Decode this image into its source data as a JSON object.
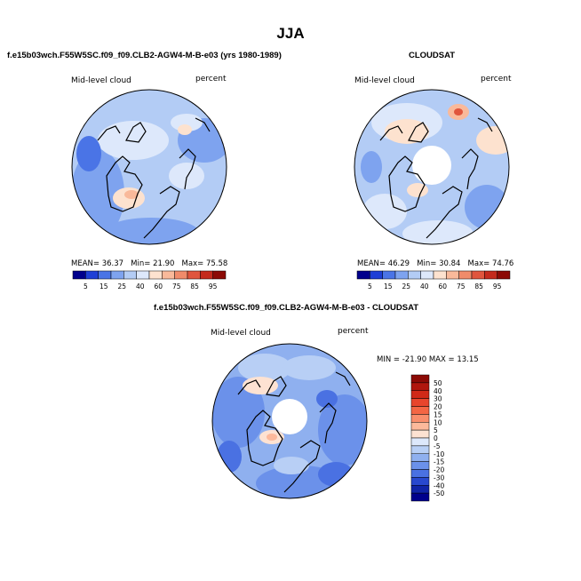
{
  "title": "JJA",
  "panels": [
    {
      "heading": "f.e15b03wch.F55W5SC.f09_f09.CLB2-AGW4-M-B-e03 (yrs 1980-1989)",
      "field_label": "Mid-level cloud",
      "units": "percent",
      "stats": {
        "mean_label": "MEAN=",
        "mean": "36.37",
        "min_label": "Min=",
        "min": "21.90",
        "max_label": "Max=",
        "max": "75.58"
      },
      "polar_hole": false
    },
    {
      "heading": "CLOUDSAT",
      "field_label": "Mid-level cloud",
      "units": "percent",
      "stats": {
        "mean_label": "MEAN=",
        "mean": "46.29",
        "min_label": "Min=",
        "min": "30.84",
        "max_label": "Max=",
        "max": "74.76"
      },
      "polar_hole": true
    },
    {
      "heading": "f.e15b03wch.F55W5SC.f09_f09.CLB2-AGW4-M-B-e03 - CLOUDSAT",
      "field_label": "Mid-level cloud",
      "units": "percent",
      "minmax_text": "MIN = -21.90  MAX =  13.15",
      "polar_hole": true
    }
  ],
  "abs_colorbar": {
    "labels": [
      "5",
      "15",
      "25",
      "40",
      "60",
      "75",
      "85",
      "95"
    ],
    "colors": [
      "#00008c",
      "#1e3fd6",
      "#4a74e6",
      "#7ea3ef",
      "#b3ccf5",
      "#dde8fb",
      "#fde2cf",
      "#f9b99a",
      "#f08b6a",
      "#e0553d",
      "#c42a1c",
      "#8c0a05"
    ]
  },
  "diff_colorbar": {
    "labels": [
      "50",
      "40",
      "30",
      "20",
      "15",
      "10",
      "5",
      "0",
      "-5",
      "-10",
      "-15",
      "-20",
      "-30",
      "-40",
      "-50"
    ],
    "colors": [
      "#8c0a05",
      "#b0160d",
      "#d02918",
      "#e8452c",
      "#f46644",
      "#f98e6c",
      "#fcb99b",
      "#fde2d2",
      "#dde8fb",
      "#b8cff5",
      "#8fb0ef",
      "#6b91ea",
      "#4a71e2",
      "#2848cf",
      "#1024a8",
      "#00008c"
    ]
  }
}
